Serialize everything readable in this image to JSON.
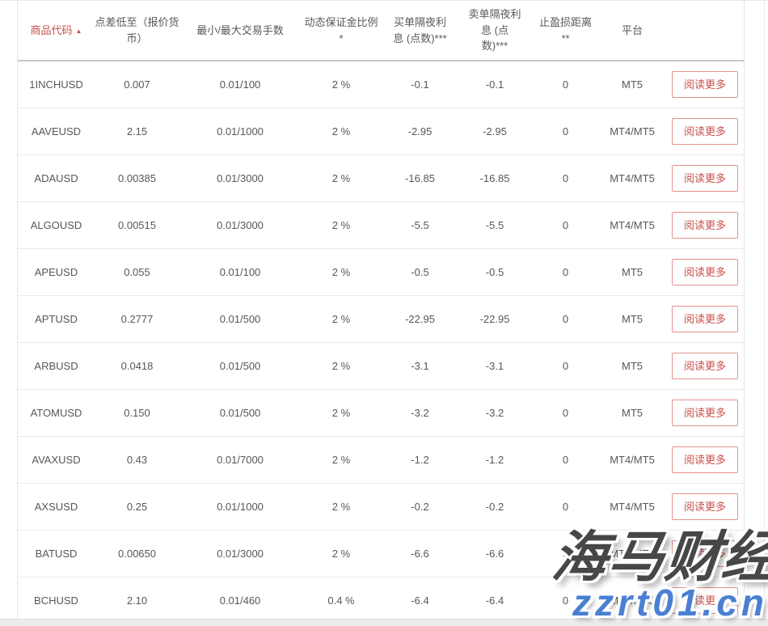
{
  "colors": {
    "accent_red": "#c9504c",
    "button_border": "#e5928e",
    "header_text": "#55585c",
    "cell_text": "#54575a",
    "row_border": "#e9e9e9",
    "header_border": "#c9c9c9",
    "table_border": "#e7e7e7",
    "scroll_track": "#ececec",
    "watermark_dark": "#474747",
    "watermark_blue": "#4a7fd2"
  },
  "icons": {
    "sort_asc": "▲"
  },
  "table": {
    "columns": [
      {
        "label": "商品代码",
        "sorted_asc": true
      },
      {
        "label": "点差低至（报价货币）"
      },
      {
        "label": "最小/最大交易手数"
      },
      {
        "label": "动态保证金比例 *"
      },
      {
        "label": "买单隔夜利息 (点数)***"
      },
      {
        "label": "卖单隔夜利息 (点数)***"
      },
      {
        "label": "止盈损距离 **"
      },
      {
        "label": "平台"
      },
      {
        "label": ""
      }
    ],
    "read_more_label": "阅读更多",
    "rows": [
      {
        "code": "1INCHUSD",
        "spread": "0.007",
        "lots": "0.01/100",
        "margin": "2 %",
        "buy_swap": "-0.1",
        "sell_swap": "-0.1",
        "stop": "0",
        "platform": "MT5"
      },
      {
        "code": "AAVEUSD",
        "spread": "2.15",
        "lots": "0.01/1000",
        "margin": "2 %",
        "buy_swap": "-2.95",
        "sell_swap": "-2.95",
        "stop": "0",
        "platform": "MT4/MT5"
      },
      {
        "code": "ADAUSD",
        "spread": "0.00385",
        "lots": "0.01/3000",
        "margin": "2 %",
        "buy_swap": "-16.85",
        "sell_swap": "-16.85",
        "stop": "0",
        "platform": "MT4/MT5"
      },
      {
        "code": "ALGOUSD",
        "spread": "0.00515",
        "lots": "0.01/3000",
        "margin": "2 %",
        "buy_swap": "-5.5",
        "sell_swap": "-5.5",
        "stop": "0",
        "platform": "MT4/MT5"
      },
      {
        "code": "APEUSD",
        "spread": "0.055",
        "lots": "0.01/100",
        "margin": "2 %",
        "buy_swap": "-0.5",
        "sell_swap": "-0.5",
        "stop": "0",
        "platform": "MT5"
      },
      {
        "code": "APTUSD",
        "spread": "0.2777",
        "lots": "0.01/500",
        "margin": "2 %",
        "buy_swap": "-22.95",
        "sell_swap": "-22.95",
        "stop": "0",
        "platform": "MT5"
      },
      {
        "code": "ARBUSD",
        "spread": "0.0418",
        "lots": "0.01/500",
        "margin": "2 %",
        "buy_swap": "-3.1",
        "sell_swap": "-3.1",
        "stop": "0",
        "platform": "MT5"
      },
      {
        "code": "ATOMUSD",
        "spread": "0.150",
        "lots": "0.01/500",
        "margin": "2 %",
        "buy_swap": "-3.2",
        "sell_swap": "-3.2",
        "stop": "0",
        "platform": "MT5"
      },
      {
        "code": "AVAXUSD",
        "spread": "0.43",
        "lots": "0.01/7000",
        "margin": "2 %",
        "buy_swap": "-1.2",
        "sell_swap": "-1.2",
        "stop": "0",
        "platform": "MT4/MT5"
      },
      {
        "code": "AXSUSD",
        "spread": "0.25",
        "lots": "0.01/1000",
        "margin": "2 %",
        "buy_swap": "-0.2",
        "sell_swap": "-0.2",
        "stop": "0",
        "platform": "MT4/MT5"
      },
      {
        "code": "BATUSD",
        "spread": "0.00650",
        "lots": "0.01/3000",
        "margin": "2 %",
        "buy_swap": "-6.6",
        "sell_swap": "-6.6",
        "stop": "0",
        "platform": "MT4/MT5"
      },
      {
        "code": "BCHUSD",
        "spread": "2.10",
        "lots": "0.01/460",
        "margin": "0.4 %",
        "buy_swap": "-6.4",
        "sell_swap": "-6.4",
        "stop": "0",
        "platform": "MT4/MT5"
      }
    ]
  },
  "watermark": {
    "title": "海马财经",
    "url": "zzrt01.cn"
  }
}
